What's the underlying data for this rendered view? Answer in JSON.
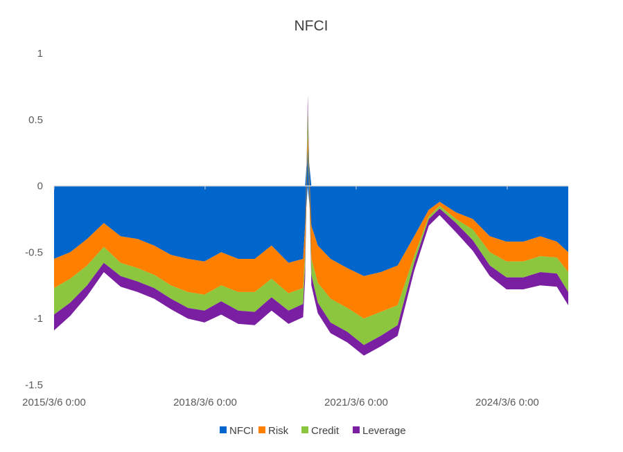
{
  "chart_data": {
    "type": "area",
    "stacked": true,
    "title": "NFCI",
    "xlabel": "",
    "ylabel": "",
    "ylim": [
      -1.5,
      1
    ],
    "y_ticks": [
      1,
      0.5,
      0,
      -0.5,
      -1,
      -1.5
    ],
    "y_tick_labels": [
      "1",
      "0.5",
      "0",
      "-0.5",
      "-1",
      "-1.5"
    ],
    "x_range": [
      "2015/3/6 0:00",
      "2025/5/23 0:00"
    ],
    "x_ticks": [
      "2015/3/6 0:00",
      "2018/3/6 0:00",
      "2021/3/6 0:00",
      "2024/3/6 0:00"
    ],
    "x": [
      "2015/3/6",
      "2015/7/1",
      "2015/11/1",
      "2016/3/1",
      "2016/7/1",
      "2016/11/1",
      "2017/3/1",
      "2017/7/1",
      "2017/11/1",
      "2018/3/1",
      "2018/7/1",
      "2018/11/1",
      "2019/3/1",
      "2019/7/1",
      "2019/11/1",
      "2020/2/15",
      "2020/3/1",
      "2020/3/20",
      "2020/4/15",
      "2020/6/1",
      "2020/9/1",
      "2021/1/1",
      "2021/5/1",
      "2021/9/1",
      "2022/1/1",
      "2022/5/1",
      "2022/8/15",
      "2022/11/1",
      "2023/3/1",
      "2023/7/1",
      "2023/11/1",
      "2024/3/1",
      "2024/7/1",
      "2024/11/1",
      "2025/3/1",
      "2025/5/23"
    ],
    "series": [
      {
        "name": "NFCI",
        "color": "#0066CC",
        "values": [
          -0.55,
          -0.5,
          -0.4,
          -0.28,
          -0.38,
          -0.4,
          -0.45,
          -0.52,
          -0.55,
          -0.57,
          -0.5,
          -0.55,
          -0.55,
          -0.45,
          -0.58,
          -0.55,
          -0.3,
          0.28,
          -0.3,
          -0.45,
          -0.55,
          -0.62,
          -0.68,
          -0.65,
          -0.6,
          -0.38,
          -0.18,
          -0.12,
          -0.2,
          -0.25,
          -0.38,
          -0.42,
          -0.42,
          -0.38,
          -0.42,
          -0.5
        ]
      },
      {
        "name": "Risk",
        "color": "#FF8000",
        "values": [
          -0.22,
          -0.2,
          -0.2,
          -0.18,
          -0.2,
          -0.22,
          -0.22,
          -0.23,
          -0.25,
          -0.25,
          -0.25,
          -0.25,
          -0.25,
          -0.25,
          -0.23,
          -0.22,
          -0.2,
          0.12,
          -0.25,
          -0.28,
          -0.3,
          -0.3,
          -0.32,
          -0.3,
          -0.3,
          -0.15,
          -0.05,
          -0.03,
          -0.05,
          -0.08,
          -0.12,
          -0.15,
          -0.15,
          -0.15,
          -0.12,
          -0.15
        ]
      },
      {
        "name": "Credit",
        "color": "#8CC63F",
        "values": [
          -0.2,
          -0.18,
          -0.15,
          -0.12,
          -0.1,
          -0.1,
          -0.1,
          -0.1,
          -0.12,
          -0.12,
          -0.12,
          -0.14,
          -0.15,
          -0.14,
          -0.13,
          -0.12,
          -0.1,
          0.2,
          -0.12,
          -0.15,
          -0.18,
          -0.18,
          -0.2,
          -0.18,
          -0.15,
          -0.05,
          -0.02,
          -0.02,
          -0.03,
          -0.08,
          -0.1,
          -0.12,
          -0.12,
          -0.12,
          -0.12,
          -0.15
        ]
      },
      {
        "name": "Leverage",
        "color": "#7B1FA2",
        "values": [
          -0.12,
          -0.1,
          -0.08,
          -0.07,
          -0.08,
          -0.08,
          -0.08,
          -0.08,
          -0.08,
          -0.09,
          -0.1,
          -0.1,
          -0.1,
          -0.1,
          -0.1,
          -0.1,
          -0.1,
          0.08,
          -0.08,
          -0.08,
          -0.08,
          -0.08,
          -0.08,
          -0.08,
          -0.08,
          -0.06,
          -0.05,
          -0.05,
          -0.07,
          -0.08,
          -0.08,
          -0.09,
          -0.09,
          -0.1,
          -0.1,
          -0.1
        ]
      }
    ],
    "legend": {
      "position": "bottom",
      "entries": [
        "NFCI",
        "Risk",
        "Credit",
        "Leverage"
      ]
    },
    "grid": false
  }
}
